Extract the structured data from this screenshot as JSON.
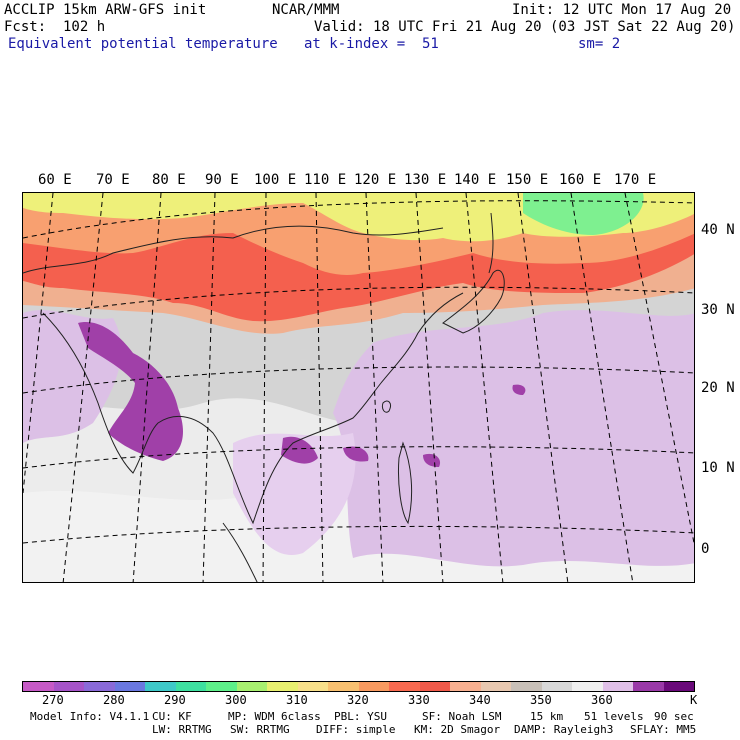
{
  "header": {
    "model": "ACCLIP 15km ARW-GFS init",
    "center": "NCAR/MMM",
    "init": "Init: 12 UTC Mon 17 Aug 20",
    "fcst": "Fcst:  102 h",
    "valid": "Valid: 18 UTC Fri 21 Aug 20 (03 JST Sat 22 Aug 20)",
    "field": "Equivalent potential temperature",
    "level": "at k-index =  51",
    "smooth": "sm= 2"
  },
  "map": {
    "lon_labels": [
      "60 E",
      "70 E",
      "80 E",
      "90 E",
      "100 E",
      "110 E",
      "120 E",
      "130 E",
      "140 E",
      "150 E",
      "160 E",
      "170 E"
    ],
    "lat_labels": [
      "40 N",
      "30 N",
      "20 N",
      "10 N",
      "0"
    ]
  },
  "colorbar": {
    "colors": [
      "#c65ac6",
      "#a654c8",
      "#8a6ad8",
      "#6a78e0",
      "#3ec8c8",
      "#3ee0a0",
      "#5ef08a",
      "#a8f070",
      "#e8f070",
      "#f8e08a",
      "#f8c070",
      "#f89a60",
      "#f86a50",
      "#f05a4a",
      "#f8b090",
      "#e8c8b0",
      "#c8c0b8",
      "#d8d8d8",
      "#f0f0f0",
      "#e0c0e8",
      "#9a3aa8",
      "#6a0a7a"
    ],
    "labels": [
      "270",
      "280",
      "290",
      "300",
      "310",
      "320",
      "330",
      "340",
      "350",
      "360",
      "K"
    ]
  },
  "footer": {
    "line1": [
      "Model Info: V4.1.1",
      "CU: KF",
      "MP: WDM 6class",
      "PBL: YSU",
      "SF: Noah LSM",
      "15 km",
      "51 levels",
      "90 sec"
    ],
    "line2": [
      "LW: RRTMG",
      "SW: RRTMG",
      "DIFF: simple",
      "KM: 2D Smagor",
      "DAMP: Rayleigh3",
      "SFLAY: MM5"
    ]
  }
}
